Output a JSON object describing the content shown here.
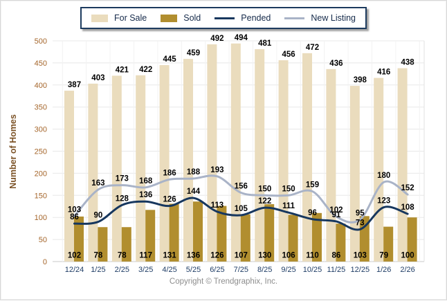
{
  "legend": {
    "items": [
      {
        "label": "For Sale",
        "swatch": "bar",
        "color": "#eadcbd"
      },
      {
        "label": "Sold",
        "swatch": "bar",
        "color": "#b18e2f"
      },
      {
        "label": "Pended",
        "swatch": "line",
        "color": "#17375e"
      },
      {
        "label": "New Listing",
        "swatch": "line",
        "color": "#a9b3c7"
      }
    ]
  },
  "chart_data": {
    "type": "bar+line",
    "title": "",
    "ylabel": "Number of Homes",
    "xlabel": "",
    "ylim": [
      0,
      500
    ],
    "yticks": [
      0,
      50,
      100,
      150,
      200,
      250,
      300,
      350,
      400,
      450,
      500
    ],
    "grid": true,
    "legend_position": "top",
    "categories": [
      "12/24",
      "1/25",
      "2/25",
      "3/25",
      "4/25",
      "5/25",
      "6/25",
      "7/25",
      "8/25",
      "9/25",
      "10/25",
      "11/25",
      "12/25",
      "1/26",
      "2/26"
    ],
    "series": [
      {
        "name": "For Sale",
        "type": "bar",
        "color": "#eadcbd",
        "values": [
          387,
          403,
          421,
          422,
          445,
          459,
          492,
          494,
          481,
          456,
          472,
          436,
          398,
          416,
          438
        ]
      },
      {
        "name": "Sold",
        "type": "bar",
        "color": "#b18e2f",
        "values": [
          102,
          78,
          78,
          117,
          131,
          136,
          126,
          107,
          130,
          106,
          110,
          86,
          103,
          79,
          100
        ]
      },
      {
        "name": "Pended",
        "type": "line",
        "color": "#17375e",
        "values": [
          86,
          90,
          128,
          136,
          126,
          144,
          113,
          105,
          122,
          111,
          96,
          91,
          73,
          123,
          108
        ]
      },
      {
        "name": "New Listing",
        "type": "line",
        "color": "#a9b3c7",
        "values": [
          103,
          163,
          173,
          168,
          186,
          188,
          193,
          156,
          150,
          150,
          159,
          102,
          95,
          180,
          152
        ]
      }
    ]
  },
  "colors": {
    "value_label": "#000000",
    "y_tick": "#a5662b",
    "axis_title": "#7b5226",
    "x_tick": "#1f3d66",
    "grid_line": "#e8e8e8",
    "axis_line": "#c9c9c9",
    "legend_border": "#1c3a5e",
    "copyright_text": "#8d8d8d"
  },
  "footer": {
    "copyright": "Copyright © Trendgraphix, Inc."
  }
}
